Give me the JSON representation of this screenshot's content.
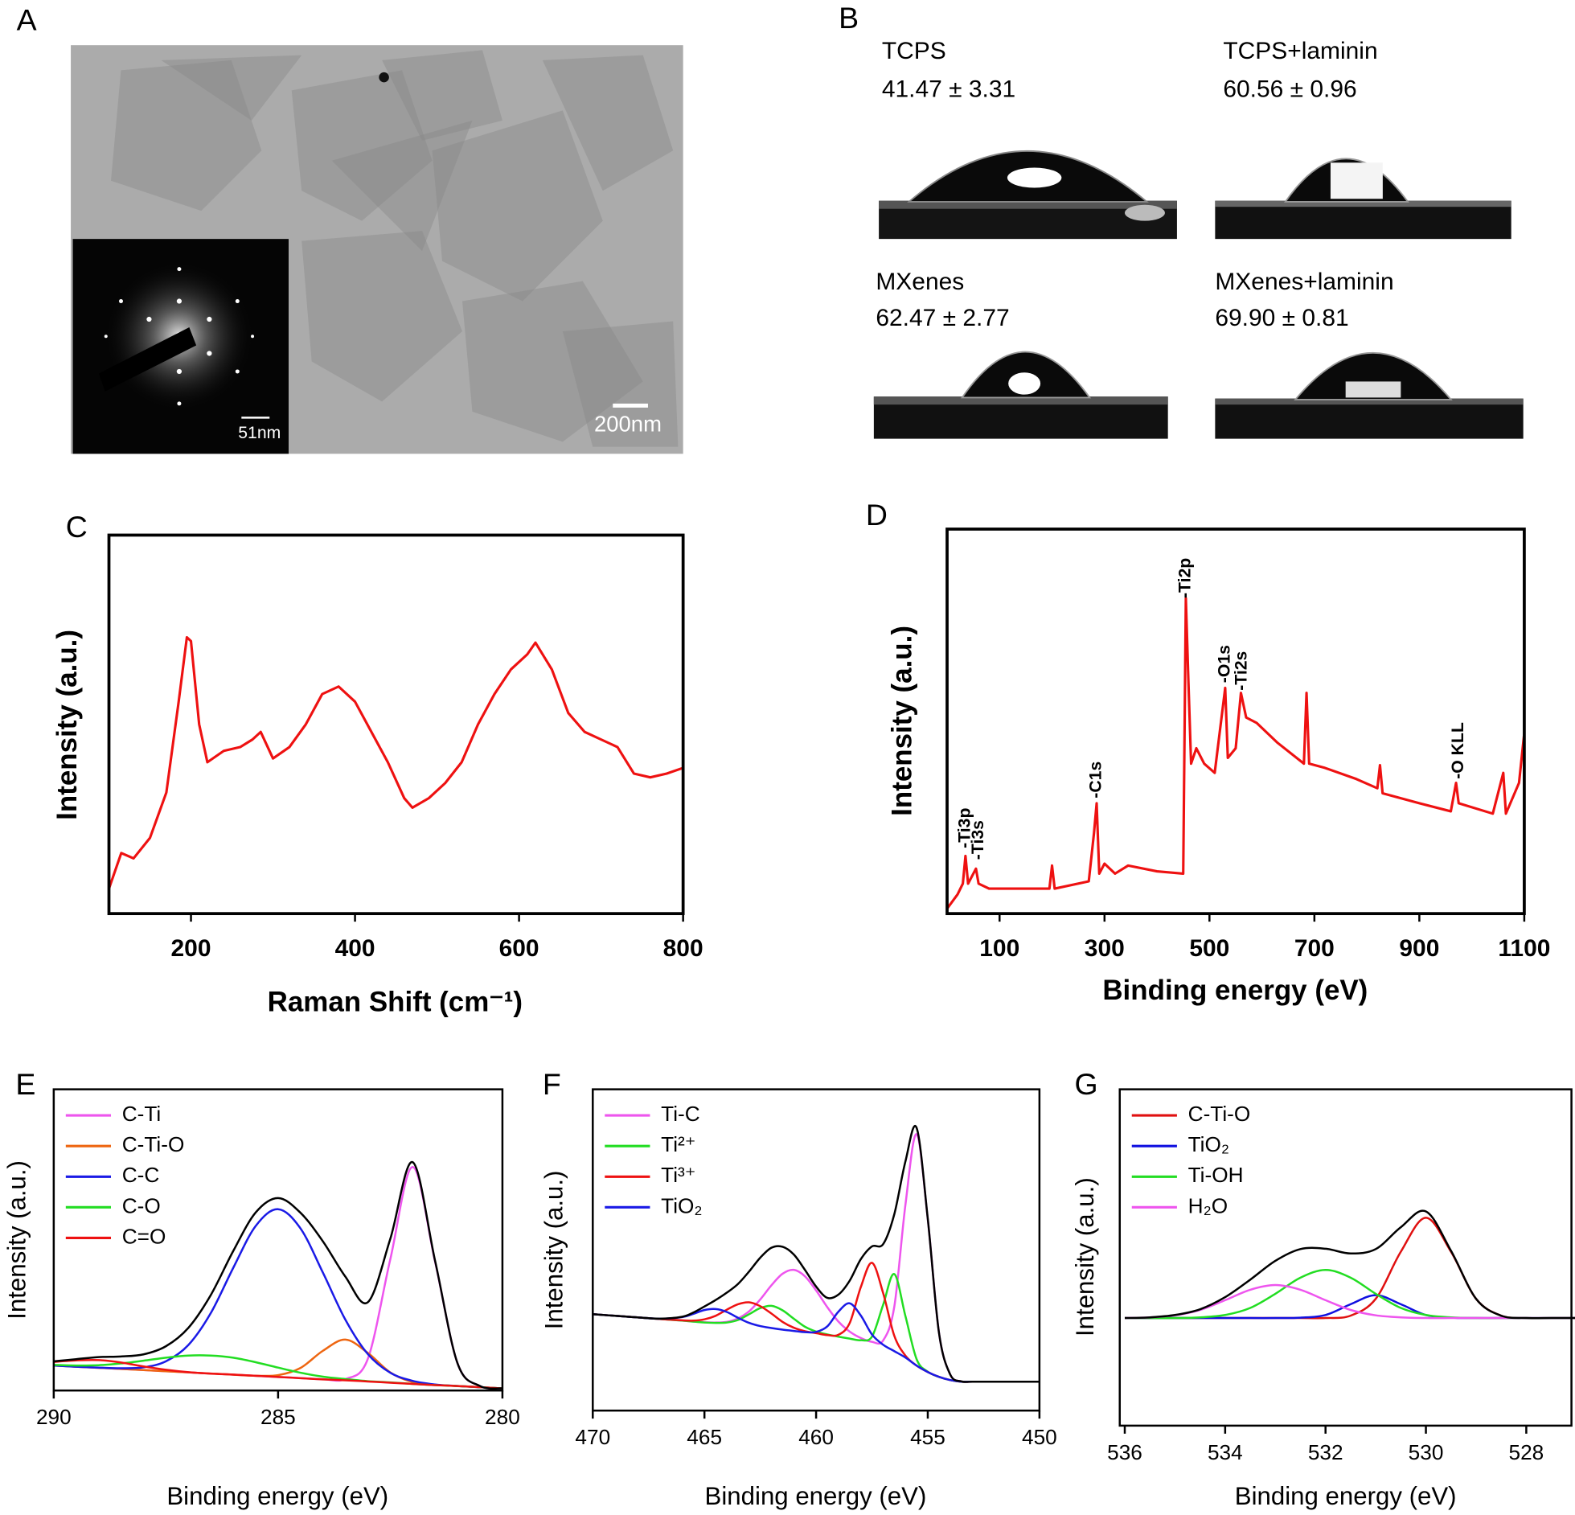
{
  "panel_a": {
    "label": "A",
    "inset_scale_bar": "51nm",
    "scale_bar": "200nm"
  },
  "panel_b": {
    "label": "B",
    "samples": [
      {
        "name": "TCPS",
        "contact_angle": "41.47 ± 3.31"
      },
      {
        "name": "TCPS+laminin",
        "contact_angle": "60.56 ± 0.96"
      },
      {
        "name": "MXenes",
        "contact_angle": "62.47 ± 2.77"
      },
      {
        "name": "MXenes+laminin",
        "contact_angle": "69.90 ± 0.81"
      }
    ]
  },
  "chart_data": [
    {
      "type": "line",
      "panel_label": "C",
      "x_label": "Raman Shift (cm⁻¹)",
      "y_label": "Intensity (a.u.)",
      "xlim": [
        100,
        800
      ],
      "ylim": [
        0,
        100
      ],
      "xticks": [
        200,
        400,
        600,
        800
      ],
      "x": [
        100,
        115,
        130,
        150,
        170,
        185,
        195,
        200,
        210,
        220,
        240,
        260,
        275,
        285,
        300,
        320,
        340,
        360,
        380,
        400,
        420,
        440,
        460,
        470,
        490,
        510,
        530,
        550,
        570,
        590,
        610,
        620,
        640,
        660,
        680,
        700,
        720,
        740,
        760,
        780,
        800
      ],
      "series": [
        {
          "color": "#ee1111",
          "values": [
            6.6,
            16,
            14.6,
            20,
            32,
            56,
            73,
            72,
            50,
            40,
            43,
            44,
            46,
            48,
            41,
            44,
            50,
            58,
            60,
            56,
            48,
            40,
            30.5,
            28,
            30.5,
            34.5,
            40,
            50,
            58,
            64.5,
            68.5,
            71.6,
            64.5,
            53,
            48,
            46,
            44,
            37,
            36,
            37,
            38.5
          ]
        }
      ]
    },
    {
      "type": "line",
      "panel_label": "D",
      "x_label": "Binding energy (eV)",
      "y_label": "Intensity (a.u.)",
      "xlim": [
        0,
        1100
      ],
      "ylim": [
        0,
        100
      ],
      "xticks": [
        100,
        300,
        500,
        700,
        900,
        1100
      ],
      "x": [
        0,
        20,
        30,
        35,
        40,
        55,
        60,
        80,
        150,
        195,
        200,
        205,
        270,
        280,
        285,
        290,
        300,
        320,
        345,
        400,
        450,
        455,
        460,
        465,
        475,
        490,
        510,
        530,
        535,
        550,
        560,
        570,
        590,
        630,
        680,
        685,
        690,
        720,
        780,
        820,
        825,
        830,
        900,
        960,
        970,
        975,
        1040,
        1060,
        1065,
        1090,
        1100
      ],
      "series": [
        {
          "color": "#ee1111",
          "values": [
            1.3,
            5,
            7.8,
            15,
            7.8,
            11.7,
            7.8,
            6.5,
            6.5,
            6.5,
            12.5,
            6.5,
            8.4,
            21,
            28.7,
            10.4,
            13,
            10.4,
            12.5,
            11,
            10.4,
            82,
            60,
            39,
            43,
            39,
            36.6,
            58.7,
            40.5,
            43,
            57.4,
            51,
            49.6,
            44.4,
            39,
            57.4,
            39,
            37.9,
            35,
            32.6,
            38.6,
            31.3,
            28.7,
            26.6,
            34,
            28.7,
            26,
            36.6,
            26,
            34,
            47
          ]
        }
      ],
      "annotations": [
        {
          "text": "-Ti3p",
          "x": 35,
          "y": 17
        },
        {
          "text": "-Ti3s",
          "x": 60,
          "y": 14
        },
        {
          "text": "-C1s",
          "x": 285,
          "y": 30
        },
        {
          "text": "-Ti2p",
          "x": 455,
          "y": 82
        },
        {
          "text": "-O1s",
          "x": 530,
          "y": 60
        },
        {
          "text": "-Ti2s",
          "x": 562,
          "y": 58
        },
        {
          "text": "-O KLL",
          "x": 975,
          "y": 35
        }
      ]
    },
    {
      "type": "line",
      "panel_label": "E",
      "x_label": "Binding energy (eV)",
      "y_label": "Intensity (a.u.)",
      "xlim": [
        290,
        280
      ],
      "ylim": [
        0,
        100
      ],
      "xticks": [
        290,
        285,
        280
      ],
      "x": [
        290,
        289.5,
        289,
        288.5,
        288,
        287.5,
        287,
        286.5,
        286,
        285.5,
        285,
        284.5,
        284,
        283.5,
        283,
        282.5,
        282,
        281.5,
        281,
        280.5,
        280
      ],
      "series": [
        {
          "name": "C-Ti",
          "color": "#ee55ee",
          "values": [
            8.3,
            7.9,
            7.54,
            7.16,
            6.78,
            6.4,
            6.02,
            5.64,
            5.26,
            4.88,
            4.5,
            4.12,
            3.74,
            3.8,
            10.5,
            43.5,
            74.2,
            42.7,
            9.0,
            1.5,
            0.7
          ]
        },
        {
          "name": "C-Ti-O",
          "color": "#ee6611",
          "values": [
            8.3,
            7.9,
            7.54,
            7.16,
            6.78,
            6.4,
            6.02,
            5.64,
            5.26,
            4.9,
            5.1,
            7.5,
            13.2,
            16.9,
            12.5,
            6.0,
            2.8,
            1.9,
            1.46,
            1.08,
            0.7
          ]
        },
        {
          "name": "C-C",
          "color": "#1a1ae6",
          "values": [
            8.3,
            7.9,
            7.6,
            7.4,
            7.7,
            9.7,
            15.1,
            25.7,
            40.7,
            54.6,
            60.2,
            53.8,
            39.1,
            23.5,
            12.1,
            5.9,
            3.2,
            2.0,
            1.5,
            1.08,
            0.7
          ]
        },
        {
          "name": "C-O",
          "color": "#22dd22",
          "values": [
            8.5,
            8.3,
            8.4,
            9.0,
            9.9,
            10.9,
            11.6,
            11.6,
            10.9,
            9.4,
            7.6,
            5.9,
            4.6,
            3.8,
            3.1,
            2.7,
            2.2,
            1.8,
            1.5,
            1.1,
            0.7
          ]
        },
        {
          "name": "C=O",
          "color": "#ee1111",
          "values": [
            9.5,
            10.0,
            10.1,
            9.3,
            8.0,
            6.9,
            6.1,
            5.6,
            5.3,
            4.9,
            4.5,
            4.1,
            3.7,
            3.4,
            3.0,
            2.6,
            2.2,
            1.8,
            1.5,
            1.1,
            0.7
          ]
        },
        {
          "color": "#000000",
          "values": [
            9.7,
            10.4,
            11.1,
            11.3,
            12.0,
            14.7,
            20.8,
            31.7,
            46.3,
            59.1,
            63.9,
            59.0,
            49.5,
            37.8,
            29.3,
            50.3,
            75.8,
            43.0,
            9.0,
            1.5,
            0.7
          ]
        }
      ]
    },
    {
      "type": "line",
      "panel_label": "F",
      "x_label": "Binding energy (eV)",
      "y_label": "Intensity (a.u.)",
      "xlim": [
        470,
        450
      ],
      "ylim": [
        0,
        100
      ],
      "xticks": [
        470,
        465,
        460,
        455,
        450
      ],
      "x": [
        470,
        469,
        468,
        467,
        466,
        465.5,
        465,
        464.5,
        464,
        463.5,
        463,
        462.5,
        462,
        461.5,
        461,
        460.5,
        460,
        459.5,
        459,
        458.5,
        458,
        457.5,
        457,
        456.5,
        456,
        455.5,
        455,
        454.5,
        454,
        453.5,
        453,
        452.5,
        452,
        451.5,
        451,
        450.5,
        450
      ],
      "series": [
        {
          "name": "Ti-C",
          "color": "#ee55ee",
          "values": [
            30,
            29.5,
            29,
            28.5,
            28,
            27.7,
            27.5,
            27.4,
            27.6,
            28.7,
            30.9,
            34.6,
            39.0,
            42.6,
            43.8,
            41.8,
            37.4,
            32.2,
            27.7,
            24.6,
            22.6,
            21.4,
            21.8,
            32.3,
            64.1,
            86.0,
            59.6,
            24.3,
            11.3,
            9.1,
            9,
            9,
            9,
            9,
            9,
            9,
            9
          ]
        },
        {
          "name": "Ti²⁺",
          "color": "#22dd22",
          "values": [
            30,
            29.5,
            29,
            28.5,
            28,
            27.7,
            27.4,
            27.3,
            27.4,
            28.2,
            30.0,
            31.9,
            32.6,
            31.2,
            28.6,
            26.1,
            24.6,
            23.7,
            23,
            22.4,
            21.9,
            23.0,
            32.9,
            42.5,
            29.4,
            16.0,
            12.1,
            10.5,
            9.5,
            9,
            9,
            9,
            9,
            9,
            9,
            9,
            9
          ]
        },
        {
          "name": "Ti³⁺",
          "color": "#ee1111",
          "values": [
            30,
            29.5,
            29,
            28.5,
            28.1,
            28.0,
            28.4,
            29.5,
            31.4,
            33.1,
            33.7,
            32.5,
            30.2,
            27.6,
            25.8,
            24.7,
            24.1,
            23.5,
            23.6,
            27.2,
            38.4,
            46.0,
            36.6,
            23.3,
            17.1,
            14.0,
            12,
            10.5,
            9.5,
            9,
            9,
            9,
            9,
            9,
            9,
            9,
            9
          ]
        },
        {
          "name": "TiO₂",
          "color": "#1a1ae6",
          "values": [
            30,
            29.5,
            29,
            28.6,
            29.1,
            30.1,
            31.3,
            31.6,
            30.7,
            28.9,
            27.3,
            26.3,
            25.7,
            25.2,
            24.8,
            24.4,
            24.5,
            26.2,
            30.8,
            33.4,
            29.6,
            23.7,
            20.5,
            18.5,
            16.5,
            14,
            12,
            10.5,
            9.5,
            9,
            9,
            9,
            9,
            9,
            9,
            9,
            9
          ]
        },
        {
          "color": "#000000",
          "values": [
            30,
            29.5,
            29,
            28.6,
            29.2,
            30.5,
            32.4,
            34.4,
            36.7,
            39.4,
            43.3,
            47.6,
            50.7,
            51.0,
            48.6,
            43.8,
            38.6,
            35.1,
            36.1,
            40.4,
            47.1,
            51.1,
            51.8,
            61.1,
            77.6,
            88.0,
            59.7,
            24.3,
            11.3,
            9.1,
            9,
            9,
            9,
            9,
            9,
            9,
            9
          ]
        }
      ]
    },
    {
      "type": "line",
      "panel_label": "G",
      "x_label": "Binding energy (eV)",
      "y_label": "Intensity (a.u.)",
      "xlim": [
        536.1,
        527.1
      ],
      "ylim": [
        0,
        100
      ],
      "xticks": [
        536,
        534,
        532,
        530,
        528
      ],
      "x": [
        536,
        535.5,
        535,
        534.5,
        534,
        533.5,
        533,
        532.5,
        532,
        531.5,
        531,
        530.5,
        530,
        529.5,
        529,
        528.5,
        528,
        527.5,
        527
      ],
      "series": [
        {
          "name": "C-Ti-O",
          "color": "#e01010",
          "values": [
            32,
            32,
            32,
            32,
            32,
            32,
            32,
            32,
            32.0,
            32.7,
            37.7,
            51.7,
            61.8,
            51.7,
            37.7,
            32.7,
            32.0,
            32,
            32
          ]
        },
        {
          "name": "TiO₂",
          "color": "#1010e0",
          "values": [
            32,
            32,
            32,
            32,
            32,
            32,
            32,
            32.1,
            32.9,
            36.1,
            38.8,
            36.1,
            32.9,
            32.1,
            32,
            32,
            32,
            32,
            32
          ]
        },
        {
          "name": "Ti-OH",
          "color": "#22dd22",
          "values": [
            32,
            32.0,
            32.0,
            32.2,
            32.9,
            35.0,
            39.2,
            44.0,
            46.3,
            44.0,
            39.2,
            35.0,
            32.9,
            32.2,
            32.0,
            32,
            32,
            32,
            32
          ]
        },
        {
          "name": "H₂O",
          "color": "#ee55ee",
          "values": [
            32.0,
            32.2,
            32.8,
            34.4,
            37.3,
            40.4,
            41.8,
            40.4,
            37.3,
            34.4,
            32.8,
            32.2,
            32.0,
            32,
            32,
            32,
            32,
            32,
            32
          ]
        },
        {
          "color": "#000000",
          "values": [
            32.0,
            32.2,
            32.9,
            34.6,
            38.2,
            43.4,
            49.0,
            52.5,
            52.6,
            51.2,
            52.5,
            59.0,
            63.7,
            52.0,
            37.7,
            32.7,
            32.0,
            32,
            32
          ]
        }
      ]
    }
  ]
}
